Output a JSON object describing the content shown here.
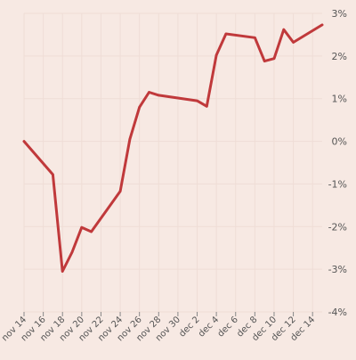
{
  "chart_data": {
    "type": "line",
    "title": "",
    "xlabel": "",
    "ylabel": "",
    "x_ticks": [
      "nov 14",
      "nov 16",
      "nov 18",
      "nov 20",
      "nov 22",
      "nov 24",
      "nov 26",
      "nov 28",
      "nov 30",
      "dec 2",
      "dec 4",
      "dec 6",
      "dec 8",
      "dec 10",
      "dec 12",
      "dec 14"
    ],
    "y_ticks": [
      "3%",
      "2%",
      "1%",
      "0%",
      "-1%",
      "-2%",
      "-3%",
      "-4%"
    ],
    "ylim": [
      -4,
      3
    ],
    "grid": true,
    "colors": {
      "line": "#c0393b",
      "grid": "#efddd6",
      "background": "#f7e9e3"
    },
    "series": [
      {
        "values": [
          {
            "x": "2016-11-14",
            "y": 0.0
          },
          {
            "x": "2016-11-17",
            "y": -0.78
          },
          {
            "x": "2016-11-18",
            "y": -3.05
          },
          {
            "x": "2016-11-19",
            "y": -2.6
          },
          {
            "x": "2016-11-20",
            "y": -2.02
          },
          {
            "x": "2016-11-21",
            "y": -2.12
          },
          {
            "x": "2016-11-24",
            "y": -1.17
          },
          {
            "x": "2016-11-25",
            "y": 0.05
          },
          {
            "x": "2016-11-26",
            "y": 0.8
          },
          {
            "x": "2016-11-27",
            "y": 1.15
          },
          {
            "x": "2016-11-28",
            "y": 1.08
          },
          {
            "x": "2016-12-02",
            "y": 0.95
          },
          {
            "x": "2016-12-03",
            "y": 0.82
          },
          {
            "x": "2016-12-04",
            "y": 2.02
          },
          {
            "x": "2016-12-05",
            "y": 2.52
          },
          {
            "x": "2016-12-08",
            "y": 2.43
          },
          {
            "x": "2016-12-09",
            "y": 1.88
          },
          {
            "x": "2016-12-10",
            "y": 1.94
          },
          {
            "x": "2016-12-11",
            "y": 2.62
          },
          {
            "x": "2016-12-12",
            "y": 2.32
          },
          {
            "x": "2016-12-15",
            "y": 2.73
          }
        ]
      }
    ]
  }
}
